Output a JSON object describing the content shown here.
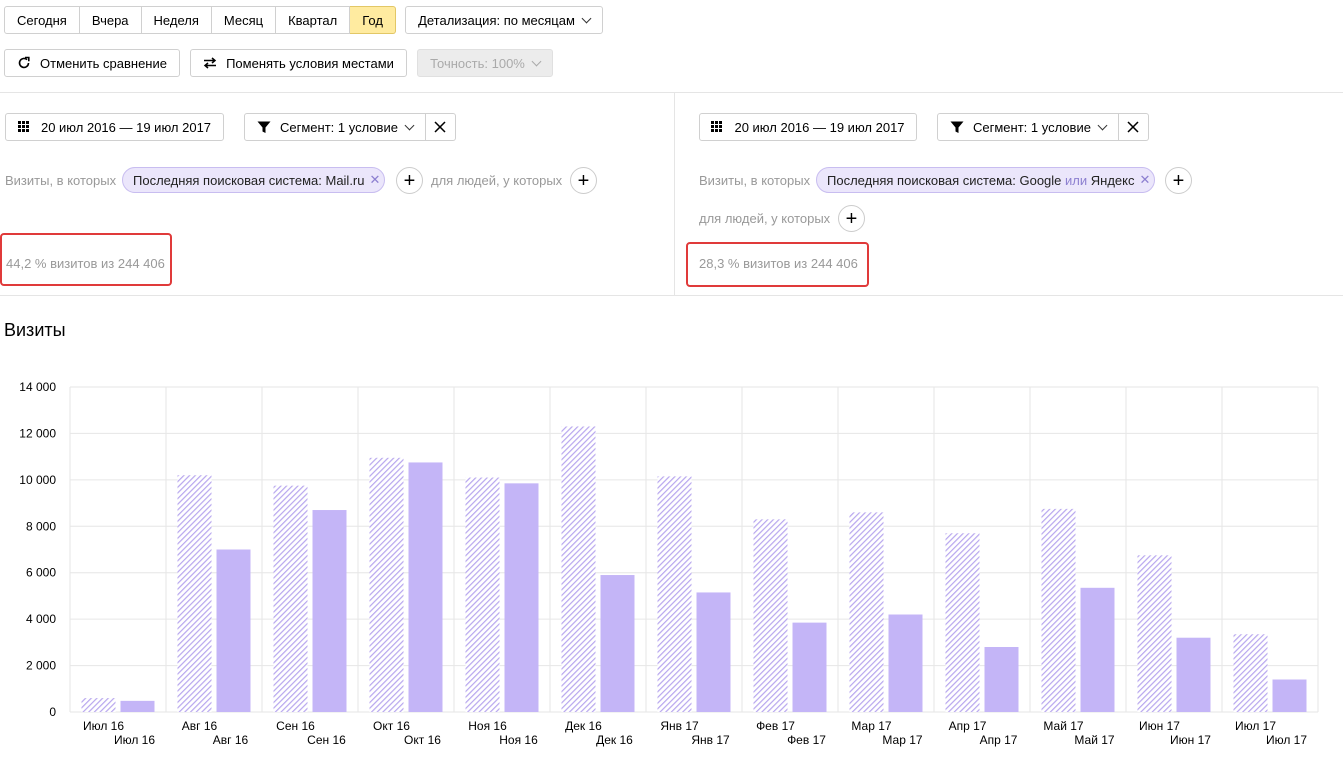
{
  "toolbar": {
    "periods": [
      {
        "label": "Сегодня",
        "active": false
      },
      {
        "label": "Вчера",
        "active": false
      },
      {
        "label": "Неделя",
        "active": false
      },
      {
        "label": "Месяц",
        "active": false
      },
      {
        "label": "Квартал",
        "active": false
      },
      {
        "label": "Год",
        "active": true
      }
    ],
    "detail_label": "Детализация: по месяцам",
    "cancel_compare_label": "Отменить сравнение",
    "swap_label": "Поменять условия местами",
    "accuracy_label": "Точность: 100%"
  },
  "left_segment": {
    "date_range": "20 июл 2016 — 19 июл 2017",
    "segment_label": "Сегмент: 1 условие",
    "visits_where": "Визиты, в которых",
    "chip": "Последняя поисковая система: Mail.ru",
    "people_where": "для людей, у которых",
    "stat": "44,2 % визитов из 244 406"
  },
  "right_segment": {
    "date_range": "20 июл 2016 — 19 июл 2017",
    "segment_label": "Сегмент: 1 условие",
    "visits_where": "Визиты, в которых",
    "chip_prefix": "Последняя поисковая система: Google",
    "chip_or": "или",
    "chip_suffix": "Яндекс",
    "people_where": "для людей, у которых",
    "stat": "28,3 % визитов из 244 406"
  },
  "section_title": "Визиты",
  "colors": {
    "bar": "#c4b5f7",
    "hatch": "#b7a6ee",
    "grid": "#e6e6e6",
    "highlight": "#e03a3a",
    "active_period": "#ffeba0"
  },
  "chart_data": {
    "type": "bar",
    "categories": [
      "Июл 16",
      "Авг 16",
      "Сен 16",
      "Окт 16",
      "Ноя 16",
      "Дек 16",
      "Янв 17",
      "Фев 17",
      "Мар 17",
      "Апр 17",
      "Май 17",
      "Июн 17",
      "Июл 17"
    ],
    "series": [
      {
        "style": "hatched",
        "values": [
          600,
          10200,
          9750,
          10950,
          10100,
          12300,
          10150,
          8300,
          8600,
          7700,
          8750,
          6750,
          3350
        ]
      },
      {
        "style": "solid",
        "values": [
          480,
          7000,
          8700,
          10750,
          9850,
          5900,
          5150,
          3850,
          4200,
          2800,
          5350,
          3200,
          1400
        ]
      }
    ],
    "yticks": [
      "0",
      "2 000",
      "4 000",
      "6 000",
      "8 000",
      "10 000",
      "12 000",
      "14 000"
    ],
    "ylim": [
      0,
      14000
    ],
    "grid": true
  }
}
